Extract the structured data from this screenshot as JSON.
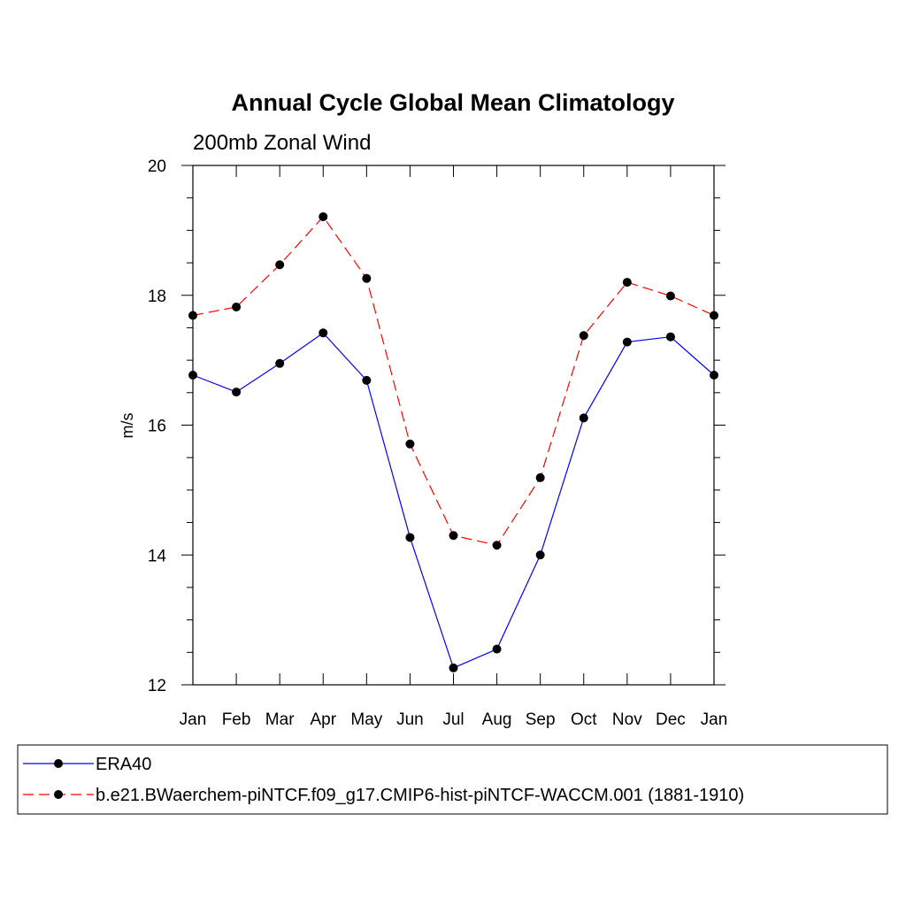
{
  "chart_data": {
    "type": "line",
    "title": "Annual Cycle Global Mean Climatology",
    "subtitle": "200mb Zonal Wind",
    "xlabel": "",
    "ylabel": "m/s",
    "categories": [
      "Jan",
      "Feb",
      "Mar",
      "Apr",
      "May",
      "Jun",
      "Jul",
      "Aug",
      "Sep",
      "Oct",
      "Nov",
      "Dec",
      "Jan"
    ],
    "ylim": [
      12,
      20
    ],
    "yticks": [
      12,
      14,
      16,
      18,
      20
    ],
    "grid": false,
    "legend_position": "bottom",
    "series": [
      {
        "name": "ERA40",
        "color": "#0000ff",
        "line_style": "solid",
        "marker": "filled-circle",
        "values": [
          16.77,
          16.51,
          16.95,
          17.42,
          16.69,
          14.27,
          12.26,
          12.55,
          14.0,
          16.11,
          17.28,
          17.36,
          16.77
        ]
      },
      {
        "name": "b.e21.BWaerchem-piNTCF.f09_g17.CMIP6-hist-piNTCF-WACCM.001 (1881-1910)",
        "color": "#ff0000",
        "line_style": "dashed",
        "marker": "filled-circle",
        "values": [
          17.69,
          17.82,
          18.47,
          19.21,
          18.26,
          15.71,
          14.3,
          14.15,
          15.19,
          17.38,
          18.2,
          17.99,
          17.69
        ]
      }
    ]
  }
}
